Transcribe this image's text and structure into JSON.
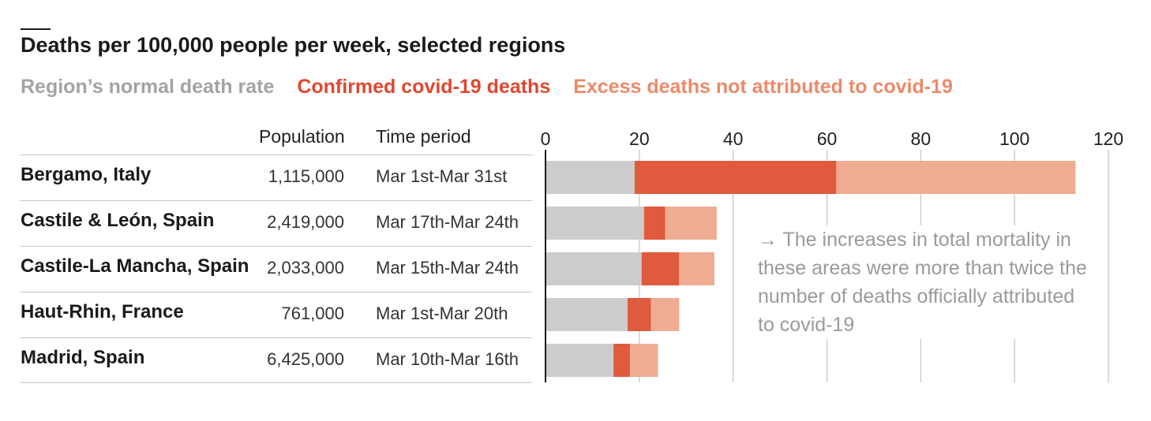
{
  "title": "Deaths per 100,000 people per week, selected regions",
  "legend": [
    {
      "label": "Region’s normal death rate",
      "color": "#a3a3a3"
    },
    {
      "label": "Confirmed covid-19 deaths",
      "color": "#e0472f"
    },
    {
      "label": "Excess deaths not attributed to covid-19",
      "color": "#ec8a69"
    }
  ],
  "columns": {
    "population": "Population",
    "period": "Time period"
  },
  "annotation": "→ The increases in total mortality in these areas were more than twice the number of deaths officially attributed to covid-19",
  "chart_data": {
    "type": "bar",
    "orientation": "horizontal",
    "stacked": true,
    "title": "Deaths per 100,000 people per week, selected regions",
    "xlim": [
      0,
      120
    ],
    "xticks": [
      0,
      20,
      40,
      60,
      80,
      100,
      120
    ],
    "categories": [
      "Bergamo, Italy",
      "Castile & León, Spain",
      "Castile-La Mancha, Spain",
      "Haut-Rhin, France",
      "Madrid, Spain"
    ],
    "population": [
      "1,115,000",
      "2,419,000",
      "2,033,000",
      "761,000",
      "6,425,000"
    ],
    "time_period": [
      "Mar 1st-Mar 31st",
      "Mar 17th-Mar 24th",
      "Mar 15th-Mar 24th",
      "Mar 1st-Mar 20th",
      "Mar 10th-Mar 16th"
    ],
    "series": [
      {
        "name": "Region’s normal death rate",
        "color": "#cccccc",
        "values": [
          19,
          21,
          20.5,
          17.5,
          14.5
        ]
      },
      {
        "name": "Confirmed covid-19 deaths",
        "color": "#e05a3e",
        "values": [
          43,
          4.5,
          8,
          5,
          3.5
        ]
      },
      {
        "name": "Excess deaths not attributed to covid-19",
        "color": "#eeac92",
        "values": [
          51,
          11,
          7.5,
          6,
          6
        ]
      }
    ],
    "grid": true
  }
}
